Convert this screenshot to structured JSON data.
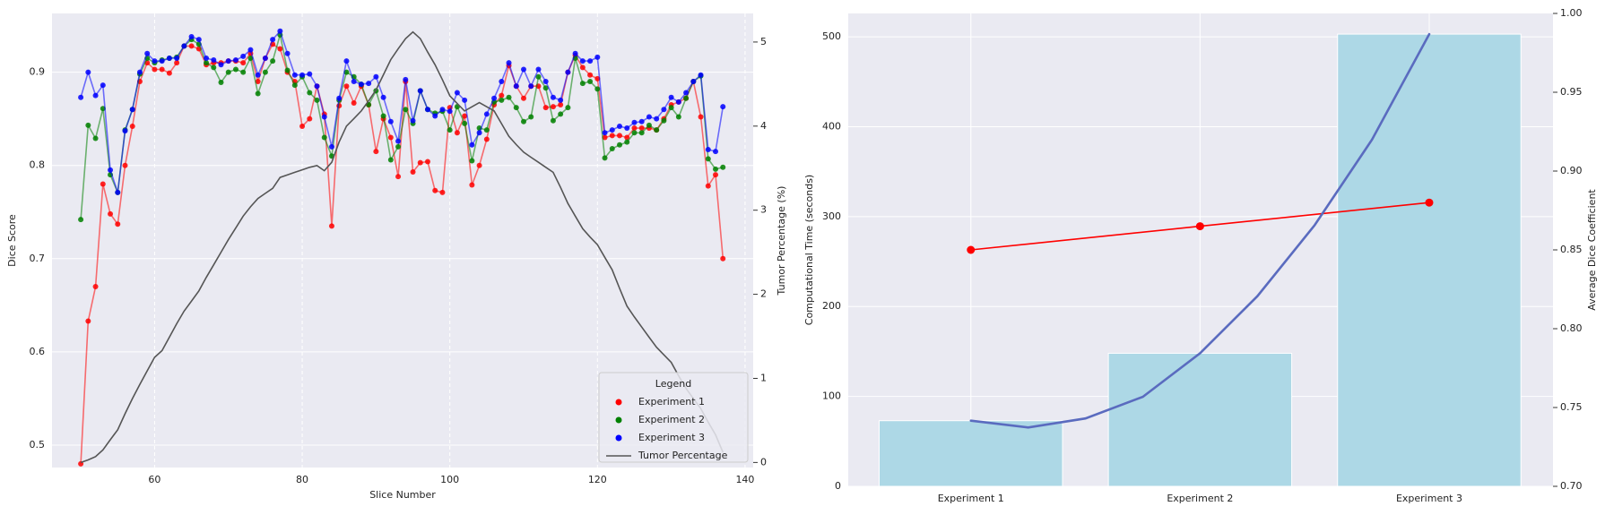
{
  "chart_data": [
    {
      "type": "line",
      "xlabel": "Slice Number",
      "ylabel": "Dice Score",
      "y2label": "Tumor Percentage (%)",
      "x": [
        50,
        51,
        52,
        53,
        54,
        55,
        56,
        57,
        58,
        59,
        60,
        61,
        62,
        63,
        64,
        65,
        66,
        67,
        68,
        69,
        70,
        71,
        72,
        73,
        74,
        75,
        76,
        77,
        78,
        79,
        80,
        81,
        82,
        83,
        84,
        85,
        86,
        87,
        88,
        89,
        90,
        91,
        92,
        93,
        94,
        95,
        96,
        97,
        98,
        99,
        100,
        101,
        102,
        103,
        104,
        105,
        106,
        107,
        108,
        109,
        110,
        111,
        112,
        113,
        114,
        115,
        116,
        117,
        118,
        119,
        120,
        121,
        122,
        123,
        124,
        125,
        126,
        127,
        128,
        129,
        130,
        131,
        132,
        133,
        134,
        135,
        136,
        137
      ],
      "series": [
        {
          "name": "Experiment 1",
          "color": "#ff0000",
          "values": [
            0.48,
            0.633,
            0.67,
            0.78,
            0.748,
            0.737,
            0.8,
            0.842,
            0.89,
            0.91,
            0.903,
            0.903,
            0.899,
            0.91,
            0.928,
            0.928,
            0.925,
            0.908,
            0.91,
            0.91,
            0.912,
            0.912,
            0.91,
            0.92,
            0.89,
            0.915,
            0.93,
            0.925,
            0.9,
            0.89,
            0.842,
            0.85,
            0.885,
            0.855,
            0.735,
            0.864,
            0.885,
            0.867,
            0.885,
            0.865,
            0.815,
            0.85,
            0.83,
            0.788,
            0.89,
            0.793,
            0.803,
            0.804,
            0.773,
            0.771,
            0.862,
            0.835,
            0.853,
            0.779,
            0.8,
            0.828,
            0.865,
            0.875,
            0.907,
            0.885,
            0.872,
            0.885,
            0.885,
            0.862,
            0.863,
            0.865,
            0.9,
            0.918,
            0.905,
            0.897,
            0.893,
            0.83,
            0.832,
            0.832,
            0.83,
            0.84,
            0.84,
            0.84,
            0.838,
            0.85,
            0.865,
            0.868,
            0.872,
            0.89,
            0.852,
            0.778,
            0.79,
            0.7
          ]
        },
        {
          "name": "Experiment 2",
          "color": "#008000",
          "values": [
            0.742,
            0.843,
            0.829,
            0.861,
            0.79,
            0.771,
            0.838,
            0.86,
            0.898,
            0.915,
            0.91,
            0.913,
            0.915,
            0.916,
            0.928,
            0.935,
            0.93,
            0.91,
            0.905,
            0.889,
            0.9,
            0.903,
            0.9,
            0.915,
            0.877,
            0.9,
            0.912,
            0.94,
            0.902,
            0.886,
            0.895,
            0.878,
            0.87,
            0.83,
            0.81,
            0.87,
            0.9,
            0.895,
            0.887,
            0.865,
            0.88,
            0.853,
            0.806,
            0.82,
            0.86,
            0.845,
            0.88,
            0.86,
            0.856,
            0.858,
            0.838,
            0.863,
            0.845,
            0.805,
            0.84,
            0.838,
            0.868,
            0.87,
            0.873,
            0.862,
            0.847,
            0.852,
            0.895,
            0.883,
            0.848,
            0.855,
            0.862,
            0.915,
            0.888,
            0.89,
            0.882,
            0.808,
            0.818,
            0.822,
            0.825,
            0.835,
            0.835,
            0.843,
            0.838,
            0.848,
            0.862,
            0.852,
            0.872,
            0.89,
            0.896,
            0.807,
            0.796,
            0.798
          ]
        },
        {
          "name": "Experiment 3",
          "color": "#0000ff",
          "values": [
            0.873,
            0.9,
            0.875,
            0.886,
            0.795,
            0.771,
            0.837,
            0.86,
            0.9,
            0.92,
            0.912,
            0.912,
            0.915,
            0.915,
            0.928,
            0.938,
            0.935,
            0.915,
            0.913,
            0.908,
            0.912,
            0.913,
            0.917,
            0.924,
            0.897,
            0.915,
            0.935,
            0.944,
            0.92,
            0.897,
            0.897,
            0.898,
            0.885,
            0.852,
            0.82,
            0.872,
            0.912,
            0.89,
            0.887,
            0.888,
            0.895,
            0.873,
            0.847,
            0.826,
            0.892,
            0.848,
            0.88,
            0.86,
            0.853,
            0.86,
            0.858,
            0.878,
            0.87,
            0.822,
            0.835,
            0.855,
            0.872,
            0.89,
            0.91,
            0.885,
            0.903,
            0.885,
            0.903,
            0.89,
            0.873,
            0.87,
            0.9,
            0.92,
            0.912,
            0.912,
            0.916,
            0.835,
            0.838,
            0.842,
            0.84,
            0.846,
            0.847,
            0.852,
            0.85,
            0.86,
            0.873,
            0.868,
            0.878,
            0.89,
            0.897,
            0.817,
            0.815,
            0.863
          ]
        },
        {
          "name": "Tumor Percentage",
          "color": "#555555",
          "axis": "y2",
          "values": [
            0,
            0.03,
            0.07,
            0.15,
            0.27,
            0.39,
            0.58,
            0.76,
            0.93,
            1.09,
            1.25,
            1.33,
            1.49,
            1.65,
            1.8,
            1.92,
            2.04,
            2.2,
            2.35,
            2.5,
            2.65,
            2.79,
            2.93,
            3.04,
            3.14,
            3.2,
            3.26,
            3.39,
            3.42,
            3.45,
            3.48,
            3.51,
            3.53,
            3.47,
            3.57,
            3.81,
            4.0,
            4.09,
            4.18,
            4.3,
            4.43,
            4.61,
            4.79,
            4.92,
            5.04,
            5.12,
            5.04,
            4.88,
            4.73,
            4.55,
            4.36,
            4.27,
            4.18,
            4.23,
            4.28,
            4.23,
            4.18,
            4.03,
            3.88,
            3.78,
            3.69,
            3.63,
            3.57,
            3.51,
            3.45,
            3.27,
            3.08,
            2.93,
            2.78,
            2.68,
            2.59,
            2.44,
            2.29,
            2.07,
            1.86,
            1.73,
            1.61,
            1.49,
            1.37,
            1.28,
            1.19,
            1.03,
            0.88,
            0.76,
            0.64,
            0.48,
            0.33,
            0.12
          ]
        }
      ],
      "xlim": [
        46.1,
        141.1
      ],
      "xticks": [
        60,
        80,
        100,
        120,
        140
      ],
      "ylim": [
        0.476,
        0.963
      ],
      "yticks": [
        0.5,
        0.6,
        0.7,
        0.8,
        0.9
      ],
      "y2lim": [
        -0.06,
        5.34
      ],
      "y2ticks": [
        0,
        1,
        2,
        3,
        4,
        5
      ],
      "grid": true,
      "legend": {
        "title": "Legend",
        "loc": "lower right"
      }
    },
    {
      "type": "bar",
      "ylabel": "Computational Time (seconds)",
      "y2label": "Average Dice Coefficient",
      "categories": [
        "Experiment 1",
        "Experiment 2",
        "Experiment 3"
      ],
      "values": [
        73,
        148,
        503
      ],
      "color": "#add8e6",
      "ylim": [
        0,
        526
      ],
      "yticks": [
        0,
        100,
        200,
        300,
        400,
        500
      ],
      "y2lim": [
        0.7,
        1.0
      ],
      "y2ticks": [
        {
          "value": 0.7,
          "label": "0.70"
        },
        {
          "value": 0.75,
          "label": "0.75"
        },
        {
          "value": 0.8,
          "label": "0.80"
        },
        {
          "value": 0.85,
          "label": "0.85"
        },
        {
          "value": 0.9,
          "label": "0.90"
        },
        {
          "value": 0.95,
          "label": "0.95"
        },
        {
          "value": 1.0,
          "label": "1.00"
        }
      ],
      "series": [
        {
          "color": "#ff0000",
          "axis": "y2",
          "values": [
            0.85,
            0.865,
            0.88
          ]
        },
        {
          "color": "#5a6bbf",
          "x": [
            0,
            0.25,
            0.5,
            0.75,
            1,
            1.25,
            1.5,
            1.75,
            2
          ],
          "values": [
            73,
            65.5,
            75.5,
            99.5,
            148,
            211.5,
            290.5,
            385.5,
            503
          ]
        }
      ],
      "grid": true
    }
  ]
}
